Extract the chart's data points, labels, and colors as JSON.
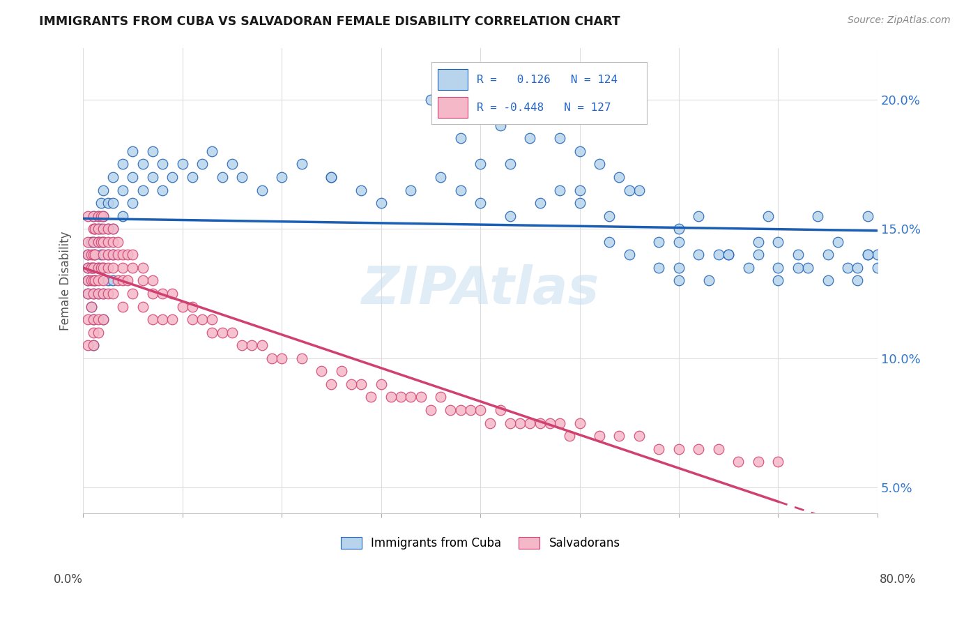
{
  "title": "IMMIGRANTS FROM CUBA VS SALVADORAN FEMALE DISABILITY CORRELATION CHART",
  "source": "Source: ZipAtlas.com",
  "ylabel": "Female Disability",
  "y_ticks": [
    "5.0%",
    "10.0%",
    "15.0%",
    "20.0%"
  ],
  "y_tick_vals": [
    0.05,
    0.1,
    0.15,
    0.2
  ],
  "cuba_color": "#b8d4ec",
  "salv_color": "#f5b8c8",
  "cuba_line_color": "#1a5fb4",
  "salv_line_color": "#d04070",
  "background": "#ffffff",
  "watermark": "ZIPAtlas",
  "xlim": [
    0.0,
    0.8
  ],
  "ylim": [
    0.04,
    0.22
  ],
  "cuba_x": [
    0.005,
    0.005,
    0.005,
    0.005,
    0.008,
    0.008,
    0.008,
    0.01,
    0.01,
    0.01,
    0.01,
    0.01,
    0.01,
    0.012,
    0.012,
    0.012,
    0.015,
    0.015,
    0.015,
    0.015,
    0.015,
    0.018,
    0.018,
    0.018,
    0.02,
    0.02,
    0.02,
    0.02,
    0.02,
    0.02,
    0.025,
    0.025,
    0.025,
    0.025,
    0.03,
    0.03,
    0.03,
    0.03,
    0.03,
    0.04,
    0.04,
    0.04,
    0.05,
    0.05,
    0.05,
    0.06,
    0.06,
    0.07,
    0.07,
    0.08,
    0.08,
    0.09,
    0.1,
    0.11,
    0.12,
    0.13,
    0.14,
    0.15,
    0.16,
    0.18,
    0.2,
    0.22,
    0.25,
    0.28,
    0.3,
    0.33,
    0.36,
    0.38,
    0.4,
    0.43,
    0.46,
    0.5,
    0.53,
    0.55,
    0.58,
    0.6,
    0.62,
    0.65,
    0.67,
    0.7,
    0.72,
    0.75,
    0.77,
    0.79,
    0.8,
    0.35,
    0.42,
    0.48,
    0.52,
    0.56,
    0.6,
    0.64,
    0.68,
    0.72,
    0.76,
    0.79,
    0.54,
    0.62,
    0.69,
    0.74,
    0.79,
    0.45,
    0.5,
    0.55,
    0.6,
    0.65,
    0.7,
    0.75,
    0.8,
    0.38,
    0.43,
    0.48,
    0.53,
    0.58,
    0.63,
    0.68,
    0.73,
    0.78,
    0.4,
    0.5,
    0.6,
    0.7,
    0.78,
    0.25
  ],
  "cuba_y": [
    0.14,
    0.135,
    0.13,
    0.125,
    0.145,
    0.135,
    0.12,
    0.155,
    0.145,
    0.135,
    0.125,
    0.115,
    0.105,
    0.15,
    0.14,
    0.13,
    0.155,
    0.15,
    0.145,
    0.135,
    0.125,
    0.16,
    0.15,
    0.14,
    0.165,
    0.155,
    0.145,
    0.135,
    0.125,
    0.115,
    0.16,
    0.15,
    0.14,
    0.13,
    0.17,
    0.16,
    0.15,
    0.14,
    0.13,
    0.175,
    0.165,
    0.155,
    0.18,
    0.17,
    0.16,
    0.175,
    0.165,
    0.18,
    0.17,
    0.175,
    0.165,
    0.17,
    0.175,
    0.17,
    0.175,
    0.18,
    0.17,
    0.175,
    0.17,
    0.165,
    0.17,
    0.175,
    0.17,
    0.165,
    0.16,
    0.165,
    0.17,
    0.165,
    0.16,
    0.155,
    0.16,
    0.16,
    0.155,
    0.14,
    0.145,
    0.13,
    0.14,
    0.14,
    0.135,
    0.13,
    0.135,
    0.13,
    0.135,
    0.14,
    0.14,
    0.2,
    0.19,
    0.185,
    0.175,
    0.165,
    0.145,
    0.14,
    0.145,
    0.14,
    0.145,
    0.14,
    0.17,
    0.155,
    0.155,
    0.155,
    0.155,
    0.185,
    0.18,
    0.165,
    0.15,
    0.14,
    0.145,
    0.14,
    0.135,
    0.185,
    0.175,
    0.165,
    0.145,
    0.135,
    0.13,
    0.14,
    0.135,
    0.13,
    0.175,
    0.165,
    0.135,
    0.135,
    0.135,
    0.17
  ],
  "salv_x": [
    0.005,
    0.005,
    0.005,
    0.005,
    0.005,
    0.005,
    0.005,
    0.005,
    0.008,
    0.008,
    0.008,
    0.008,
    0.01,
    0.01,
    0.01,
    0.01,
    0.01,
    0.01,
    0.01,
    0.01,
    0.01,
    0.01,
    0.012,
    0.012,
    0.012,
    0.015,
    0.015,
    0.015,
    0.015,
    0.015,
    0.015,
    0.015,
    0.015,
    0.018,
    0.018,
    0.018,
    0.02,
    0.02,
    0.02,
    0.02,
    0.02,
    0.02,
    0.02,
    0.02,
    0.025,
    0.025,
    0.025,
    0.025,
    0.025,
    0.03,
    0.03,
    0.03,
    0.03,
    0.03,
    0.035,
    0.035,
    0.035,
    0.04,
    0.04,
    0.04,
    0.04,
    0.045,
    0.045,
    0.05,
    0.05,
    0.05,
    0.06,
    0.06,
    0.06,
    0.07,
    0.07,
    0.07,
    0.08,
    0.08,
    0.09,
    0.09,
    0.1,
    0.11,
    0.11,
    0.12,
    0.13,
    0.13,
    0.14,
    0.15,
    0.16,
    0.17,
    0.18,
    0.19,
    0.2,
    0.22,
    0.24,
    0.26,
    0.28,
    0.3,
    0.32,
    0.34,
    0.36,
    0.38,
    0.4,
    0.42,
    0.44,
    0.46,
    0.48,
    0.5,
    0.52,
    0.54,
    0.56,
    0.58,
    0.6,
    0.62,
    0.64,
    0.66,
    0.68,
    0.7,
    0.25,
    0.27,
    0.29,
    0.31,
    0.33,
    0.35,
    0.37,
    0.39,
    0.41,
    0.43,
    0.45,
    0.47,
    0.49
  ],
  "salv_y": [
    0.155,
    0.145,
    0.14,
    0.135,
    0.13,
    0.125,
    0.115,
    0.105,
    0.14,
    0.135,
    0.13,
    0.12,
    0.155,
    0.15,
    0.145,
    0.14,
    0.135,
    0.13,
    0.125,
    0.115,
    0.11,
    0.105,
    0.15,
    0.14,
    0.13,
    0.155,
    0.15,
    0.145,
    0.135,
    0.13,
    0.125,
    0.115,
    0.11,
    0.155,
    0.145,
    0.135,
    0.155,
    0.15,
    0.145,
    0.14,
    0.135,
    0.13,
    0.125,
    0.115,
    0.15,
    0.145,
    0.14,
    0.135,
    0.125,
    0.15,
    0.145,
    0.14,
    0.135,
    0.125,
    0.145,
    0.14,
    0.13,
    0.14,
    0.135,
    0.13,
    0.12,
    0.14,
    0.13,
    0.14,
    0.135,
    0.125,
    0.135,
    0.13,
    0.12,
    0.13,
    0.125,
    0.115,
    0.125,
    0.115,
    0.125,
    0.115,
    0.12,
    0.12,
    0.115,
    0.115,
    0.115,
    0.11,
    0.11,
    0.11,
    0.105,
    0.105,
    0.105,
    0.1,
    0.1,
    0.1,
    0.095,
    0.095,
    0.09,
    0.09,
    0.085,
    0.085,
    0.085,
    0.08,
    0.08,
    0.08,
    0.075,
    0.075,
    0.075,
    0.075,
    0.07,
    0.07,
    0.07,
    0.065,
    0.065,
    0.065,
    0.065,
    0.06,
    0.06,
    0.06,
    0.09,
    0.09,
    0.085,
    0.085,
    0.085,
    0.08,
    0.08,
    0.08,
    0.075,
    0.075,
    0.075,
    0.075,
    0.07
  ]
}
